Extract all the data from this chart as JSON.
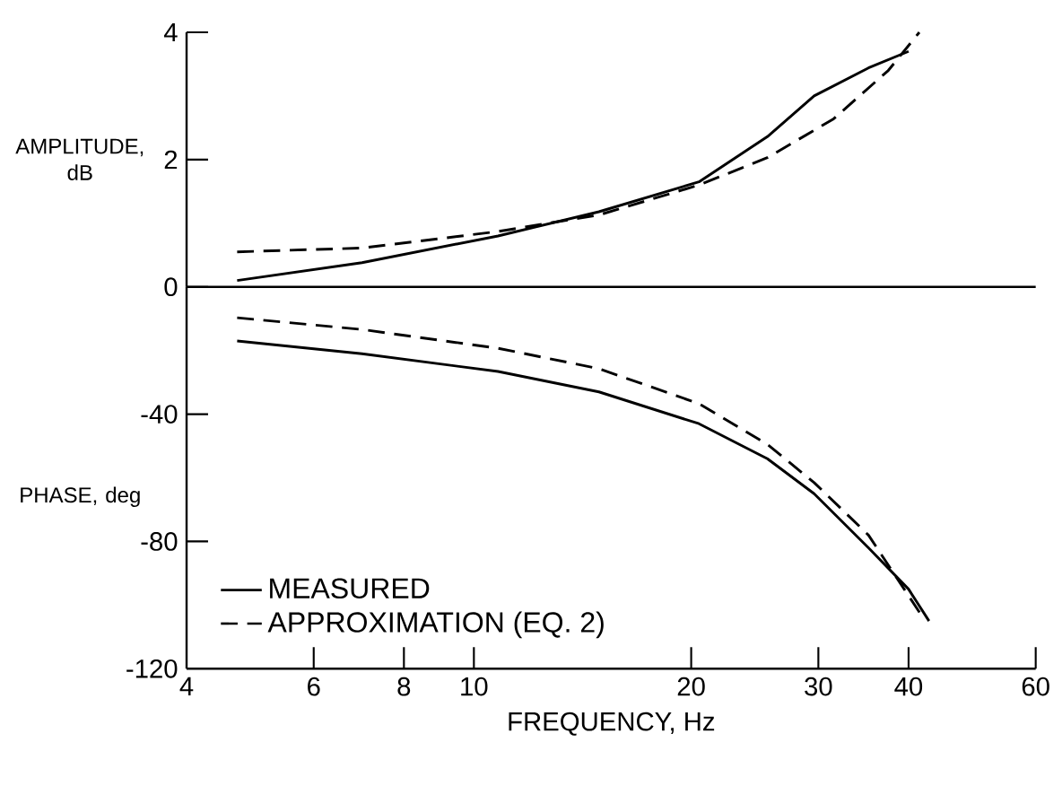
{
  "chart_data": [
    {
      "type": "line",
      "ylabel": "AMPLITUDE, dB",
      "log": "x",
      "xlim": [
        4,
        60
      ],
      "ylim": [
        0,
        4
      ],
      "yticks": [
        2,
        4
      ],
      "tick_labels": "y",
      "marker": "none",
      "series": [
        {
          "color": "#000000",
          "line_style": "solid",
          "x": [
            4.7,
            7.0,
            10.8,
            14.9,
            20.5,
            25.5,
            29.6,
            35.2,
            40.0
          ],
          "values": [
            0.1,
            0.38,
            0.8,
            1.18,
            1.65,
            2.36,
            3.0,
            3.44,
            3.7
          ]
        },
        {
          "color": "#000000",
          "line_style": "dashed",
          "x": [
            4.7,
            7.0,
            10.8,
            14.9,
            20.5,
            25.5,
            31.5,
            37.5,
            41.4
          ],
          "values": [
            0.55,
            0.61,
            0.87,
            1.13,
            1.6,
            2.03,
            2.64,
            3.4,
            4.0
          ]
        }
      ]
    },
    {
      "type": "line",
      "xlabel": "FREQUENCY, Hz",
      "ylabel": "PHASE, deg",
      "log": "x",
      "xlim": [
        4,
        60
      ],
      "xticks": [
        4,
        6,
        8,
        10,
        20,
        30,
        40,
        60
      ],
      "ylim": [
        -120,
        0
      ],
      "yticks": [
        0,
        -40,
        -80,
        -120
      ],
      "legend": "bottom left",
      "marker": "none",
      "series": [
        {
          "name": "MEASURED",
          "color": "#000000",
          "line_style": "solid",
          "x": [
            4.7,
            7.0,
            10.8,
            14.9,
            20.5,
            25.5,
            29.6,
            35.2,
            40.0,
            42.7
          ],
          "values": [
            -17,
            -21,
            -26.6,
            -33,
            -43,
            -54,
            -65,
            -82,
            -95,
            -105
          ]
        },
        {
          "name": "APPROXIMATION (EQ. 2)",
          "color": "#000000",
          "line_style": "dashed",
          "x": [
            4.7,
            7.0,
            10.8,
            14.9,
            20.5,
            25.5,
            29.6,
            35.2,
            41.9
          ],
          "values": [
            -9.7,
            -13.4,
            -19.3,
            -25.7,
            -36.7,
            -49.5,
            -61.5,
            -78,
            -104
          ]
        }
      ]
    }
  ]
}
